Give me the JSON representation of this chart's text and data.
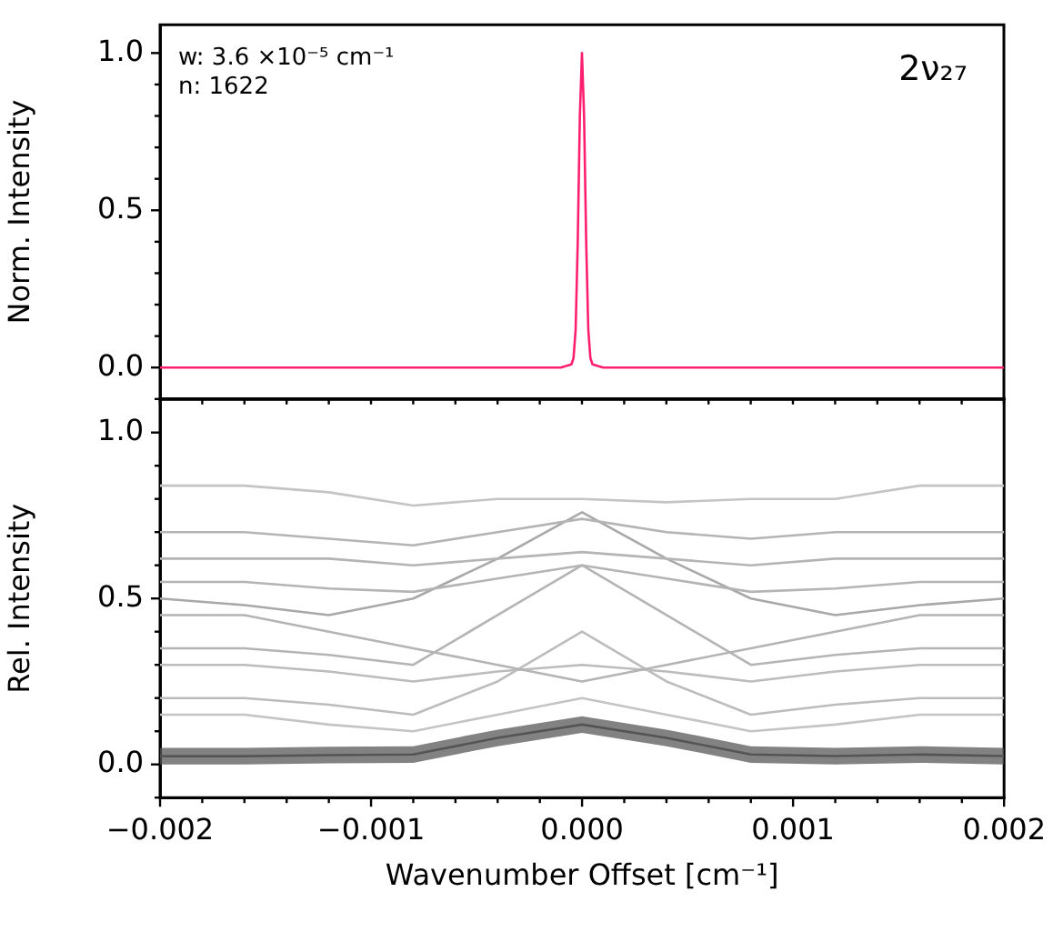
{
  "chart_data": [
    {
      "type": "line",
      "ylabel": "Norm. Intensity",
      "annotations": [
        "w: 3.6 ×10⁻⁵ cm⁻¹",
        "n: 1622",
        "2ν₂₇"
      ],
      "x": [
        -0.002,
        -0.0001,
        -5e-05,
        -4e-05,
        -3e-05,
        -2e-05,
        -1e-05,
        0,
        1e-05,
        2e-05,
        3e-05,
        4e-05,
        5e-05,
        0.0001,
        0.002
      ],
      "series": [
        {
          "color": "#ff1f6e",
          "values": [
            0,
            0,
            0.01,
            0.03,
            0.12,
            0.4,
            0.8,
            1,
            0.8,
            0.4,
            0.12,
            0.03,
            0.01,
            0,
            0
          ]
        }
      ],
      "xlim": [
        -0.002,
        0.002
      ],
      "ylim": [
        -0.1,
        1.09
      ],
      "xticks": [
        {
          "value": -0.002,
          "label": null
        },
        {
          "value": -0.0018,
          "label": null
        },
        {
          "value": -0.0016,
          "label": null
        },
        {
          "value": -0.0014,
          "label": null
        },
        {
          "value": -0.0012,
          "label": null
        },
        {
          "value": -0.001,
          "label": null
        },
        {
          "value": -0.0008,
          "label": null
        },
        {
          "value": -0.0006,
          "label": null
        },
        {
          "value": -0.0004,
          "label": null
        },
        {
          "value": -0.0002,
          "label": null
        },
        {
          "value": 0,
          "label": null
        },
        {
          "value": 0.0002,
          "label": null
        },
        {
          "value": 0.0004,
          "label": null
        },
        {
          "value": 0.0006,
          "label": null
        },
        {
          "value": 0.0008,
          "label": null
        },
        {
          "value": 0.001,
          "label": null
        },
        {
          "value": 0.0012,
          "label": null
        },
        {
          "value": 0.0014,
          "label": null
        },
        {
          "value": 0.0016,
          "label": null
        },
        {
          "value": 0.0018,
          "label": null
        },
        {
          "value": 0.002,
          "label": null
        }
      ],
      "yticks": [
        {
          "value": -0.1,
          "label": null
        },
        {
          "value": 0,
          "label": "0.0"
        },
        {
          "value": 0.1,
          "label": null
        },
        {
          "value": 0.2,
          "label": null
        },
        {
          "value": 0.3,
          "label": null
        },
        {
          "value": 0.4,
          "label": null
        },
        {
          "value": 0.5,
          "label": "0.5"
        },
        {
          "value": 0.6,
          "label": null
        },
        {
          "value": 0.7,
          "label": null
        },
        {
          "value": 0.8,
          "label": null
        },
        {
          "value": 0.9,
          "label": null
        },
        {
          "value": 1,
          "label": "1.0"
        }
      ],
      "tick_labels": "y",
      "grid": false,
      "legend": false
    },
    {
      "type": "line",
      "xlabel": "Wavenumber Offset [cm⁻¹]",
      "ylabel": "Rel. Intensity",
      "x": [
        -0.002,
        -0.0016,
        -0.0012,
        -0.0008,
        -0.0004,
        0,
        0.0004,
        0.0008,
        0.0012,
        0.0016,
        0.002
      ],
      "series": [
        {
          "color": "#555555",
          "values": [
            0.025,
            0.025,
            0.028,
            0.03,
            0.08,
            0.12,
            0.08,
            0.03,
            0.025,
            0.03,
            0.025
          ],
          "lower": [
            0,
            0,
            0.003,
            0.005,
            0.055,
            0.095,
            0.055,
            0.005,
            0,
            0.005,
            0
          ],
          "upper": [
            0.05,
            0.05,
            0.053,
            0.055,
            0.105,
            0.145,
            0.105,
            0.055,
            0.05,
            0.055,
            0.05
          ]
        },
        {
          "color": "#c4c4c4",
          "values": [
            0.84,
            0.84,
            0.82,
            0.78,
            0.8,
            0.8,
            0.79,
            0.8,
            0.8,
            0.84,
            0.84
          ]
        },
        {
          "color": "#b4b4b4",
          "values": [
            0.7,
            0.7,
            0.68,
            0.66,
            0.7,
            0.74,
            0.7,
            0.68,
            0.7,
            0.7,
            0.7
          ]
        },
        {
          "color": "#b4b4b4",
          "values": [
            0.62,
            0.62,
            0.62,
            0.6,
            0.62,
            0.64,
            0.62,
            0.6,
            0.62,
            0.62,
            0.62
          ]
        },
        {
          "color": "#b4b4b4",
          "values": [
            0.55,
            0.55,
            0.53,
            0.52,
            0.56,
            0.6,
            0.56,
            0.52,
            0.53,
            0.55,
            0.55
          ]
        },
        {
          "color": "#a8a8a8",
          "values": [
            0.5,
            0.48,
            0.45,
            0.5,
            0.62,
            0.76,
            0.62,
            0.5,
            0.45,
            0.48,
            0.5
          ]
        },
        {
          "color": "#b4b4b4",
          "values": [
            0.45,
            0.45,
            0.4,
            0.35,
            0.3,
            0.25,
            0.3,
            0.35,
            0.4,
            0.45,
            0.45
          ]
        },
        {
          "color": "#b4b4b4",
          "values": [
            0.35,
            0.35,
            0.33,
            0.3,
            0.45,
            0.6,
            0.45,
            0.3,
            0.33,
            0.35,
            0.35
          ]
        },
        {
          "color": "#bcbcbc",
          "values": [
            0.3,
            0.3,
            0.28,
            0.25,
            0.28,
            0.3,
            0.28,
            0.25,
            0.28,
            0.3,
            0.3
          ]
        },
        {
          "color": "#bcbcbc",
          "values": [
            0.2,
            0.2,
            0.18,
            0.15,
            0.25,
            0.4,
            0.25,
            0.15,
            0.18,
            0.2,
            0.2
          ]
        },
        {
          "color": "#c4c4c4",
          "values": [
            0.15,
            0.15,
            0.12,
            0.1,
            0.15,
            0.2,
            0.15,
            0.1,
            0.12,
            0.15,
            0.15
          ]
        }
      ],
      "xlim": [
        -0.002,
        0.002
      ],
      "ylim": [
        -0.1,
        1.1
      ],
      "xticks": [
        {
          "value": -0.002,
          "label": "−0.002"
        },
        {
          "value": -0.0018,
          "label": null
        },
        {
          "value": -0.0016,
          "label": null
        },
        {
          "value": -0.0014,
          "label": null
        },
        {
          "value": -0.0012,
          "label": null
        },
        {
          "value": -0.001,
          "label": "−0.001"
        },
        {
          "value": -0.0008,
          "label": null
        },
        {
          "value": -0.0006,
          "label": null
        },
        {
          "value": -0.0004,
          "label": null
        },
        {
          "value": -0.0002,
          "label": null
        },
        {
          "value": 0,
          "label": "0.000"
        },
        {
          "value": 0.0002,
          "label": null
        },
        {
          "value": 0.0004,
          "label": null
        },
        {
          "value": 0.0006,
          "label": null
        },
        {
          "value": 0.0008,
          "label": null
        },
        {
          "value": 0.001,
          "label": "0.001"
        },
        {
          "value": 0.0012,
          "label": null
        },
        {
          "value": 0.0014,
          "label": null
        },
        {
          "value": 0.0016,
          "label": null
        },
        {
          "value": 0.0018,
          "label": null
        },
        {
          "value": 0.002,
          "label": "0.002"
        }
      ],
      "yticks": [
        {
          "value": -0.1,
          "label": null
        },
        {
          "value": 0,
          "label": "0.0"
        },
        {
          "value": 0.1,
          "label": null
        },
        {
          "value": 0.2,
          "label": null
        },
        {
          "value": 0.3,
          "label": null
        },
        {
          "value": 0.4,
          "label": null
        },
        {
          "value": 0.5,
          "label": "0.5"
        },
        {
          "value": 0.6,
          "label": null
        },
        {
          "value": 0.7,
          "label": null
        },
        {
          "value": 0.8,
          "label": null
        },
        {
          "value": 0.9,
          "label": null
        },
        {
          "value": 1,
          "label": "1.0"
        }
      ],
      "grid": false,
      "legend": false
    }
  ]
}
